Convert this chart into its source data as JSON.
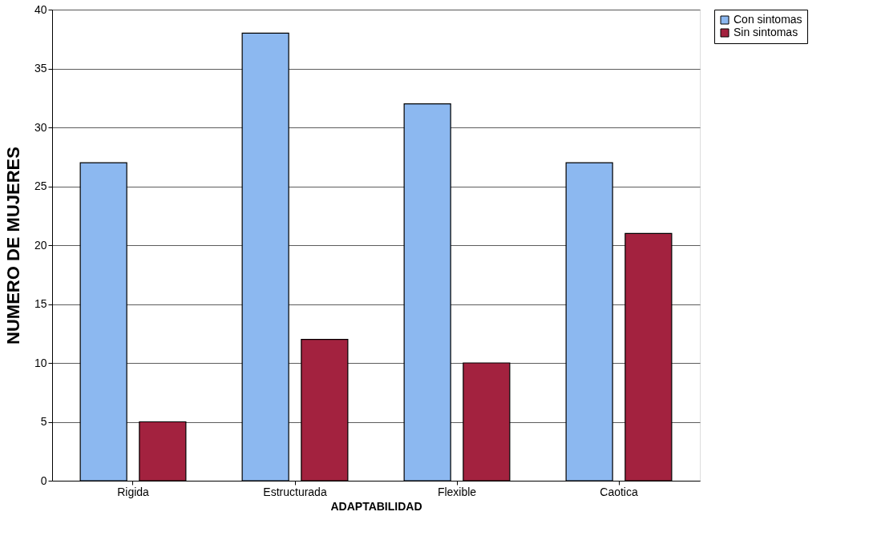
{
  "chart_data": {
    "type": "bar",
    "xlabel": "ADAPTABILIDAD",
    "ylabel": "NUMERO DE MUJERES",
    "categories": [
      "Rigida",
      "Estructurada",
      "Flexible",
      "Caotica"
    ],
    "series": [
      {
        "name": "Con sintomas",
        "color": "#8cb8f0",
        "values": [
          27,
          38,
          32,
          27
        ]
      },
      {
        "name": "Sin sintomas",
        "color": "#a3223f",
        "values": [
          5,
          12,
          10,
          21
        ]
      }
    ],
    "ylim": [
      0,
      40
    ],
    "yticks": [
      0,
      5,
      10,
      15,
      20,
      25,
      30,
      35,
      40
    ],
    "grid": "y",
    "legend": "right"
  }
}
